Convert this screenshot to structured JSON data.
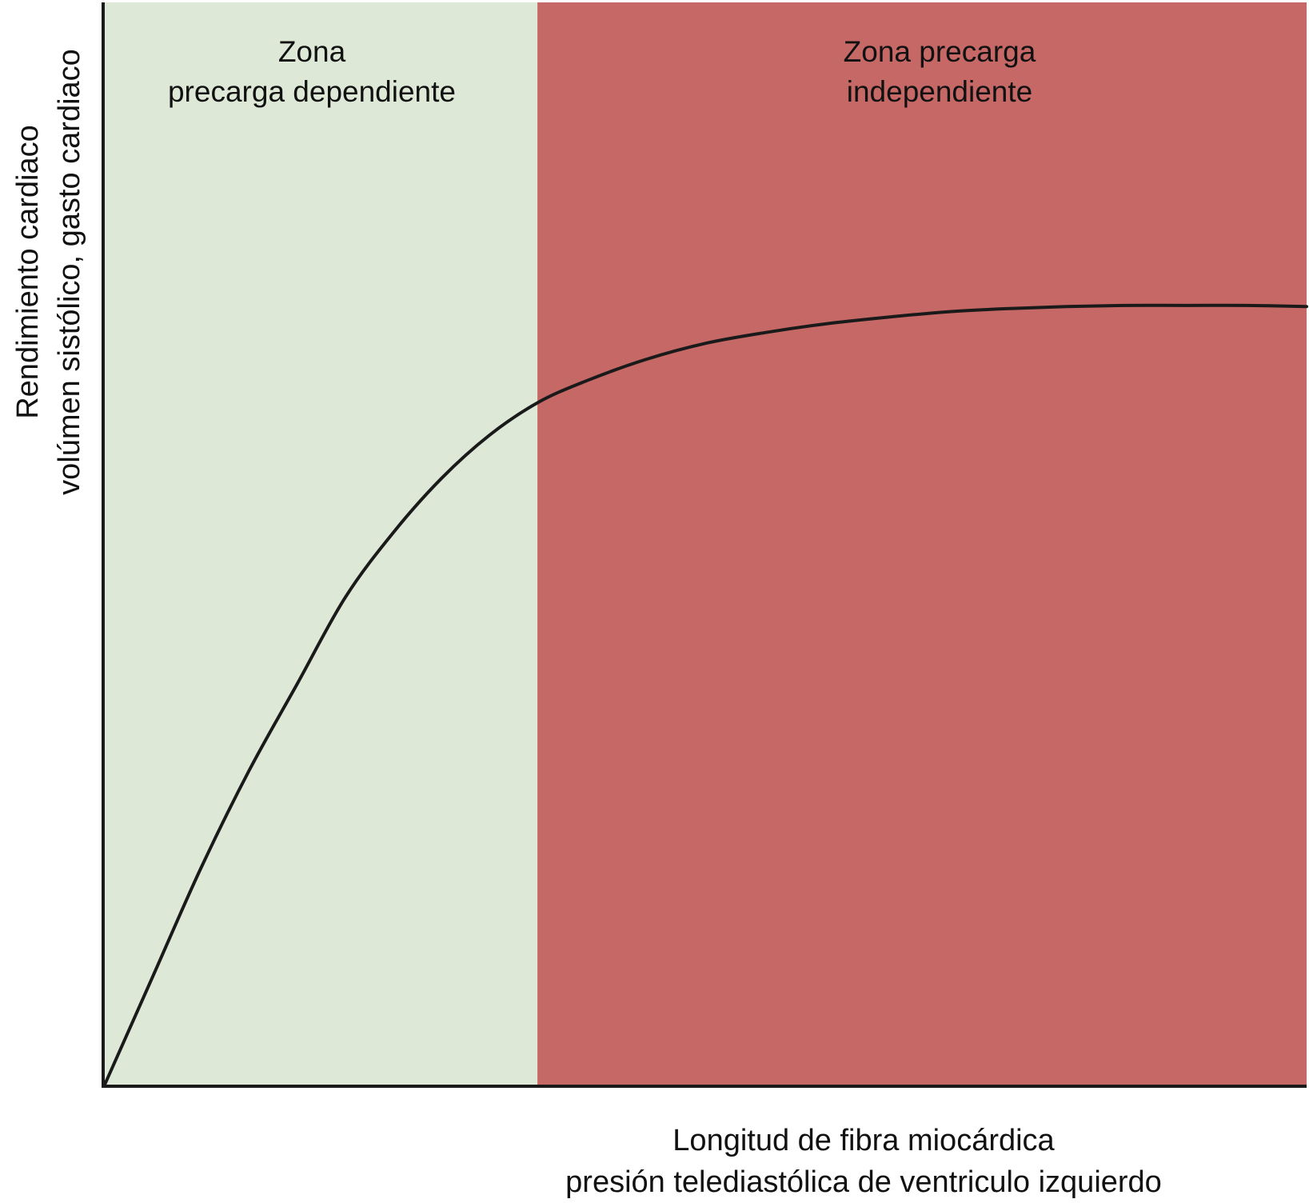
{
  "chart_data": {
    "type": "line",
    "title": "",
    "xlabel": [
      "Longitud de fibra miocárdica",
      "presión telediastólica de ventriculo izquierdo"
    ],
    "ylabel": [
      "Rendimiento cardiaco",
      "volúmen sistólico, gasto cardiaco"
    ],
    "xlim": [
      0,
      100
    ],
    "ylim": [
      0,
      100
    ],
    "grid": false,
    "legend": "none",
    "regions": [
      {
        "label": [
          "Zona",
          "precarga dependiente"
        ],
        "x_range": [
          0,
          36
        ],
        "color": "#dde9d6"
      },
      {
        "label": [
          "Zona precarga",
          "independiente"
        ],
        "x_range": [
          36,
          100
        ],
        "color": "#c56866"
      }
    ],
    "series": [
      {
        "color": "#1a1a1a",
        "x": [
          0,
          4,
          8,
          12,
          16,
          20,
          24,
          28,
          32,
          36,
          40,
          45,
          50,
          55,
          60,
          65,
          70,
          75,
          80,
          85,
          90,
          95,
          100
        ],
        "y": [
          0,
          10,
          20,
          29,
          37,
          45,
          51,
          56,
          60,
          63,
          65,
          67,
          68.5,
          69.5,
          70.3,
          70.9,
          71.4,
          71.7,
          71.9,
          72.0,
          72.0,
          72.0,
          71.9
        ]
      }
    ]
  }
}
